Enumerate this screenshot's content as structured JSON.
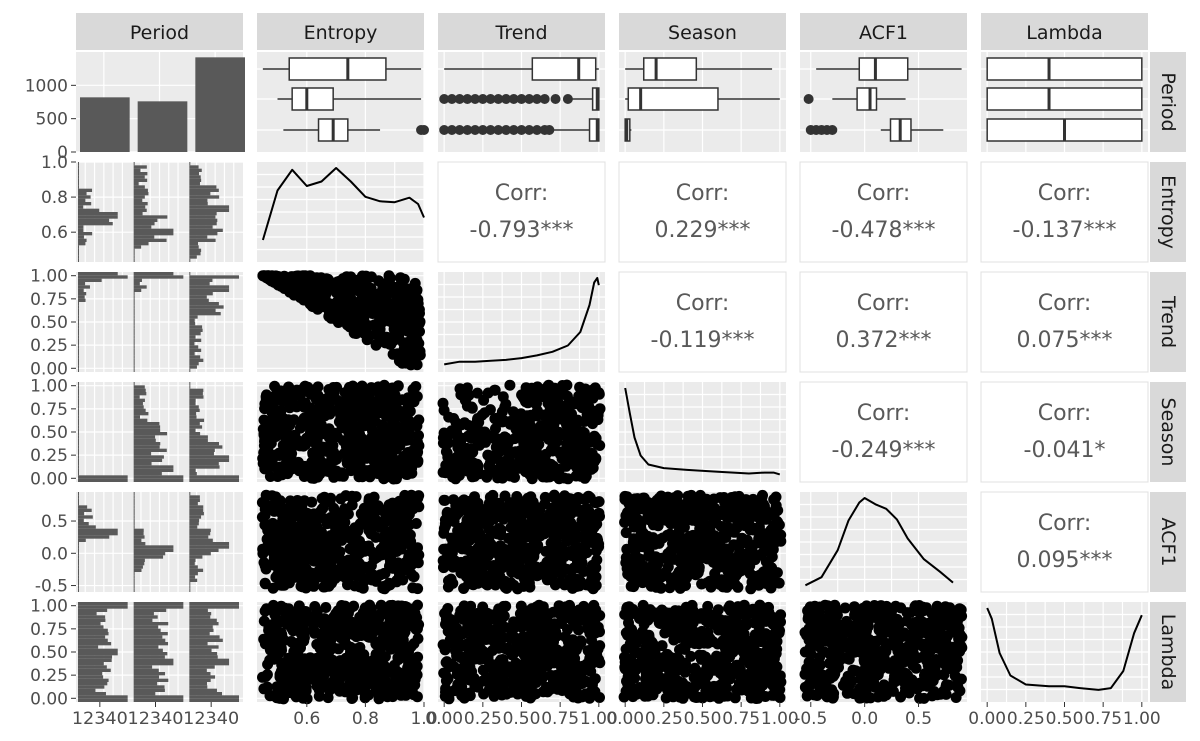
{
  "chart_data": {
    "type": "pairs",
    "variables": [
      "Period",
      "Entropy",
      "Trend",
      "Season",
      "ACF1",
      "Lambda"
    ],
    "period_levels": [
      "1",
      "2",
      "3"
    ],
    "period_counts": [
      820,
      760,
      1420
    ],
    "period_axis": {
      "ylim": [
        0,
        1500
      ],
      "yticks": [
        "0",
        "500",
        "1000"
      ],
      "xtick_label": "12340"
    },
    "axes": {
      "Entropy": {
        "range": [
          0.43,
          1.0
        ],
        "x_ticks": [
          0.6,
          0.8,
          1.0
        ],
        "x_tick_labels": [
          "0.6",
          "0.8",
          "1.0"
        ],
        "y_ticks": [
          0.6,
          0.8,
          1.0
        ],
        "y_tick_labels": [
          "0.6",
          "0.8",
          "1.0"
        ]
      },
      "Trend": {
        "range": [
          -0.04,
          1.04
        ],
        "x_ticks": [
          0,
          0.25,
          0.5,
          0.75,
          1.0
        ],
        "x_tick_labels": [
          "0.00",
          "0.25",
          "0.50",
          "0.75",
          "1.00"
        ],
        "y_ticks": [
          0,
          0.25,
          0.5,
          0.75,
          1.0
        ],
        "y_tick_labels": [
          "0.00",
          "0.25",
          "0.50",
          "0.75",
          "1.00"
        ]
      },
      "Season": {
        "range": [
          -0.04,
          1.04
        ],
        "x_ticks": [
          0,
          0.25,
          0.5,
          0.75,
          1.0
        ],
        "x_tick_labels": [
          "0.00",
          "0.25",
          "0.50",
          "0.75",
          "1.00"
        ],
        "y_ticks": [
          0,
          0.25,
          0.5,
          0.75,
          1.0
        ],
        "y_tick_labels": [
          "0.00",
          "0.25",
          "0.50",
          "0.75",
          "1.00"
        ]
      },
      "ACF1": {
        "range": [
          -0.6,
          0.95
        ],
        "x_ticks": [
          -0.5,
          0,
          0.5
        ],
        "x_tick_labels": [
          "-0.5",
          "0.0",
          "0.5"
        ],
        "y_ticks": [
          -0.5,
          0,
          0.5
        ],
        "y_tick_labels": [
          "-0.5",
          "0.0",
          "0.5"
        ]
      },
      "Lambda": {
        "range": [
          -0.04,
          1.04
        ],
        "x_ticks": [
          0,
          0.25,
          0.5,
          0.75,
          1.0
        ],
        "x_tick_labels": [
          "0.00",
          "0.25",
          "0.50",
          "0.75",
          "1.00"
        ],
        "y_ticks": [
          0,
          0.25,
          0.5,
          0.75,
          1.0
        ],
        "y_tick_labels": [
          "0.00",
          "0.25",
          "0.50",
          "0.75",
          "1.00"
        ]
      }
    },
    "correlations": [
      {
        "x": "Trend",
        "y": "Entropy",
        "label": "Corr:",
        "value": "-0.793***"
      },
      {
        "x": "Season",
        "y": "Entropy",
        "label": "Corr:",
        "value": "0.229***"
      },
      {
        "x": "ACF1",
        "y": "Entropy",
        "label": "Corr:",
        "value": "-0.478***"
      },
      {
        "x": "Lambda",
        "y": "Entropy",
        "label": "Corr:",
        "value": "-0.137***"
      },
      {
        "x": "Season",
        "y": "Trend",
        "label": "Corr:",
        "value": "-0.119***"
      },
      {
        "x": "ACF1",
        "y": "Trend",
        "label": "Corr:",
        "value": "0.372***"
      },
      {
        "x": "Lambda",
        "y": "Trend",
        "label": "Corr:",
        "value": "0.075***"
      },
      {
        "x": "ACF1",
        "y": "Season",
        "label": "Corr:",
        "value": "-0.249***"
      },
      {
        "x": "Lambda",
        "y": "Season",
        "label": "Corr:",
        "value": "-0.041*"
      },
      {
        "x": "Lambda",
        "y": "ACF1",
        "label": "Corr:",
        "value": "0.095***"
      }
    ],
    "boxplots": {
      "Entropy": [
        {
          "level": "1",
          "min": 0.52,
          "q1": 0.64,
          "median": 0.69,
          "q3": 0.74,
          "max": 0.85,
          "outliers": [
            0.99,
            1.0
          ]
        },
        {
          "level": "2",
          "min": 0.5,
          "q1": 0.55,
          "median": 0.6,
          "q3": 0.69,
          "max": 0.99,
          "outliers": []
        },
        {
          "level": "3",
          "min": 0.45,
          "q1": 0.54,
          "median": 0.74,
          "q3": 0.87,
          "max": 0.99,
          "outliers": []
        }
      ],
      "Trend": [
        {
          "level": "1",
          "min": 0.7,
          "q1": 0.94,
          "median": 0.99,
          "q3": 1.0,
          "max": 1.0,
          "outliers": [
            0.0,
            0.05,
            0.1,
            0.15,
            0.2,
            0.25,
            0.3,
            0.35,
            0.4,
            0.45,
            0.5,
            0.55,
            0.6,
            0.65,
            0.68
          ]
        },
        {
          "level": "2",
          "min": 0.82,
          "q1": 0.96,
          "median": 0.99,
          "q3": 1.0,
          "max": 1.0,
          "outliers": [
            0.0,
            0.05,
            0.1,
            0.15,
            0.2,
            0.25,
            0.3,
            0.35,
            0.4,
            0.45,
            0.5,
            0.55,
            0.6,
            0.65,
            0.72,
            0.8
          ]
        },
        {
          "level": "3",
          "min": 0.0,
          "q1": 0.57,
          "median": 0.87,
          "q3": 0.98,
          "max": 1.0,
          "outliers": []
        }
      ],
      "Season": [
        {
          "level": "1",
          "min": 0.0,
          "q1": 0.0,
          "median": 0.01,
          "q3": 0.03,
          "max": 0.04,
          "outliers": []
        },
        {
          "level": "2",
          "min": 0.0,
          "q1": 0.02,
          "median": 0.1,
          "q3": 0.6,
          "max": 1.0,
          "outliers": []
        },
        {
          "level": "3",
          "min": 0.0,
          "q1": 0.12,
          "median": 0.2,
          "q3": 0.46,
          "max": 0.95,
          "outliers": []
        }
      ],
      "ACF1": [
        {
          "level": "1",
          "min": 0.15,
          "q1": 0.24,
          "median": 0.33,
          "q3": 0.43,
          "max": 0.73,
          "outliers": [
            -0.5,
            -0.45,
            -0.4,
            -0.35,
            -0.3
          ]
        },
        {
          "level": "2",
          "min": -0.3,
          "q1": -0.07,
          "median": 0.05,
          "q3": 0.11,
          "max": 0.38,
          "outliers": [
            -0.52
          ]
        },
        {
          "level": "3",
          "min": -0.45,
          "q1": -0.05,
          "median": 0.1,
          "q3": 0.4,
          "max": 0.9,
          "outliers": []
        }
      ],
      "Lambda": [
        {
          "level": "1",
          "min": 0.0,
          "q1": 0.0,
          "median": 0.5,
          "q3": 1.0,
          "max": 1.0,
          "outliers": []
        },
        {
          "level": "2",
          "min": 0.0,
          "q1": 0.0,
          "median": 0.4,
          "q3": 1.0,
          "max": 1.0,
          "outliers": []
        },
        {
          "level": "3",
          "min": 0.0,
          "q1": 0.0,
          "median": 0.4,
          "q3": 1.0,
          "max": 1.0,
          "outliers": []
        }
      ]
    },
    "densities": {
      "Entropy": [
        [
          0.45,
          0.2
        ],
        [
          0.5,
          0.75
        ],
        [
          0.55,
          0.98
        ],
        [
          0.6,
          0.8
        ],
        [
          0.65,
          0.85
        ],
        [
          0.7,
          1.0
        ],
        [
          0.75,
          0.85
        ],
        [
          0.8,
          0.68
        ],
        [
          0.85,
          0.63
        ],
        [
          0.9,
          0.62
        ],
        [
          0.95,
          0.67
        ],
        [
          0.98,
          0.6
        ],
        [
          1.0,
          0.45
        ]
      ],
      "Trend": [
        [
          0.0,
          0.04
        ],
        [
          0.1,
          0.07
        ],
        [
          0.2,
          0.07
        ],
        [
          0.3,
          0.08
        ],
        [
          0.4,
          0.09
        ],
        [
          0.5,
          0.11
        ],
        [
          0.6,
          0.14
        ],
        [
          0.7,
          0.18
        ],
        [
          0.8,
          0.25
        ],
        [
          0.88,
          0.4
        ],
        [
          0.94,
          0.7
        ],
        [
          0.97,
          0.95
        ],
        [
          0.99,
          1.0
        ],
        [
          1.0,
          0.92
        ]
      ],
      "Season": [
        [
          0.0,
          1.0
        ],
        [
          0.03,
          0.72
        ],
        [
          0.06,
          0.45
        ],
        [
          0.1,
          0.25
        ],
        [
          0.15,
          0.15
        ],
        [
          0.25,
          0.11
        ],
        [
          0.4,
          0.09
        ],
        [
          0.6,
          0.07
        ],
        [
          0.8,
          0.05
        ],
        [
          0.9,
          0.06
        ],
        [
          0.96,
          0.06
        ],
        [
          1.0,
          0.04
        ]
      ],
      "ACF1": [
        [
          -0.55,
          0.03
        ],
        [
          -0.4,
          0.12
        ],
        [
          -0.25,
          0.42
        ],
        [
          -0.15,
          0.75
        ],
        [
          -0.05,
          0.95
        ],
        [
          0.0,
          1.0
        ],
        [
          0.1,
          0.93
        ],
        [
          0.2,
          0.88
        ],
        [
          0.3,
          0.76
        ],
        [
          0.4,
          0.55
        ],
        [
          0.55,
          0.32
        ],
        [
          0.7,
          0.18
        ],
        [
          0.82,
          0.06
        ]
      ],
      "Lambda": [
        [
          0.0,
          1.0
        ],
        [
          0.03,
          0.88
        ],
        [
          0.08,
          0.5
        ],
        [
          0.15,
          0.25
        ],
        [
          0.25,
          0.15
        ],
        [
          0.4,
          0.13
        ],
        [
          0.5,
          0.13
        ],
        [
          0.6,
          0.11
        ],
        [
          0.72,
          0.09
        ],
        [
          0.8,
          0.11
        ],
        [
          0.88,
          0.3
        ],
        [
          0.95,
          0.72
        ],
        [
          1.0,
          0.92
        ]
      ]
    }
  }
}
